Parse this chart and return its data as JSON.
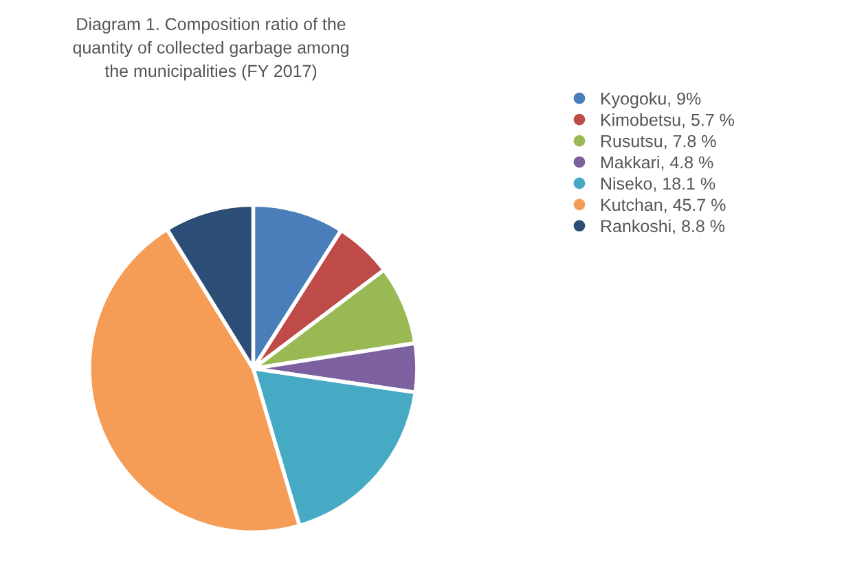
{
  "chart_data": {
    "type": "pie",
    "title": "Diagram 1. Composition ratio of the\nquantity of collected garbage among\nthe municipalities (FY 2017)",
    "categories": [
      "Kyogoku, 9%",
      "Kimobetsu, 5.7 %",
      "Rusutsu, 7.8 %",
      "Makkari, 4.8 %",
      "Niseko, 18.1 %",
      "Kutchan, 45.7 %",
      "Rankoshi, 8.8 %"
    ],
    "values": [
      9,
      5.7,
      7.8,
      4.8,
      18.1,
      45.7,
      8.8
    ],
    "colors": [
      "#4a7ebb",
      "#be4b48",
      "#98b954",
      "#7d60a0",
      "#46aac5",
      "#f59d56",
      "#2c4d75"
    ],
    "legend": "right"
  }
}
